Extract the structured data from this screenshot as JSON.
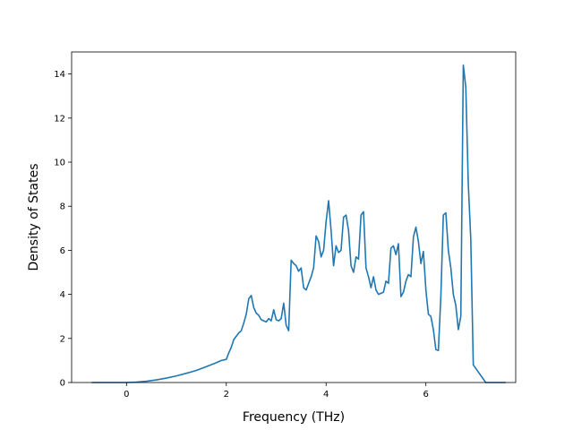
{
  "chart_data": {
    "type": "line",
    "title": "",
    "xlabel": "Frequency (THz)",
    "ylabel": "Density of States",
    "xlim": [
      -1.1,
      7.8
    ],
    "ylim": [
      0,
      15
    ],
    "x_ticks": [
      0,
      2,
      4,
      6
    ],
    "y_ticks": [
      0,
      2,
      4,
      6,
      8,
      10,
      12,
      14
    ],
    "grid": false,
    "legend": "none",
    "series_color": "#1f77b4",
    "series": [
      {
        "x": [
          -0.7,
          -0.4,
          -0.1,
          0.0,
          0.2,
          0.4,
          0.6,
          0.8,
          1.0,
          1.2,
          1.4,
          1.6,
          1.8,
          1.9,
          2.0,
          2.05,
          2.1,
          2.15,
          2.2,
          2.25,
          2.3,
          2.35,
          2.4,
          2.45,
          2.5,
          2.55,
          2.6,
          2.65,
          2.7,
          2.75,
          2.8,
          2.85,
          2.9,
          2.95,
          3.0,
          3.05,
          3.1,
          3.15,
          3.2,
          3.25,
          3.3,
          3.35,
          3.4,
          3.45,
          3.5,
          3.55,
          3.6,
          3.65,
          3.7,
          3.75,
          3.8,
          3.85,
          3.9,
          3.95,
          4.0,
          4.05,
          4.1,
          4.15,
          4.2,
          4.25,
          4.3,
          4.35,
          4.4,
          4.45,
          4.5,
          4.55,
          4.6,
          4.65,
          4.7,
          4.75,
          4.8,
          4.85,
          4.9,
          4.95,
          5.0,
          5.05,
          5.1,
          5.15,
          5.2,
          5.25,
          5.3,
          5.35,
          5.4,
          5.45,
          5.5,
          5.55,
          5.6,
          5.65,
          5.7,
          5.75,
          5.8,
          5.85,
          5.9,
          5.95,
          6.0,
          6.05,
          6.1,
          6.15,
          6.2,
          6.25,
          6.3,
          6.35,
          6.4,
          6.45,
          6.5,
          6.55,
          6.6,
          6.65,
          6.7,
          6.75,
          6.8,
          6.85,
          6.9,
          6.95,
          7.2,
          7.6
        ],
        "y": [
          0.0,
          0.0,
          0.0,
          0.0,
          0.02,
          0.06,
          0.12,
          0.2,
          0.3,
          0.42,
          0.55,
          0.72,
          0.9,
          1.0,
          1.05,
          1.35,
          1.6,
          1.95,
          2.1,
          2.25,
          2.35,
          2.7,
          3.1,
          3.8,
          3.95,
          3.4,
          3.15,
          3.05,
          2.85,
          2.8,
          2.75,
          2.9,
          2.8,
          3.3,
          2.85,
          2.8,
          2.9,
          3.6,
          2.6,
          2.35,
          5.55,
          5.4,
          5.3,
          5.05,
          5.2,
          4.3,
          4.2,
          4.5,
          4.8,
          5.2,
          6.65,
          6.4,
          5.7,
          6.0,
          7.3,
          8.25,
          6.9,
          5.3,
          6.2,
          5.9,
          6.0,
          7.5,
          7.6,
          6.9,
          5.3,
          5.0,
          5.7,
          5.6,
          7.6,
          7.75,
          5.2,
          4.8,
          4.3,
          4.8,
          4.2,
          4.0,
          4.05,
          4.1,
          4.6,
          4.5,
          6.1,
          6.2,
          5.8,
          6.3,
          3.9,
          4.1,
          4.6,
          4.9,
          4.8,
          6.6,
          7.05,
          6.4,
          5.4,
          5.95,
          4.2,
          3.1,
          3.0,
          2.4,
          1.5,
          1.45,
          3.9,
          7.6,
          7.7,
          6.0,
          5.2,
          4.0,
          3.5,
          2.4,
          3.0,
          14.4,
          13.4,
          9.0,
          6.5,
          0.8,
          0.0,
          0.0
        ]
      }
    ]
  }
}
